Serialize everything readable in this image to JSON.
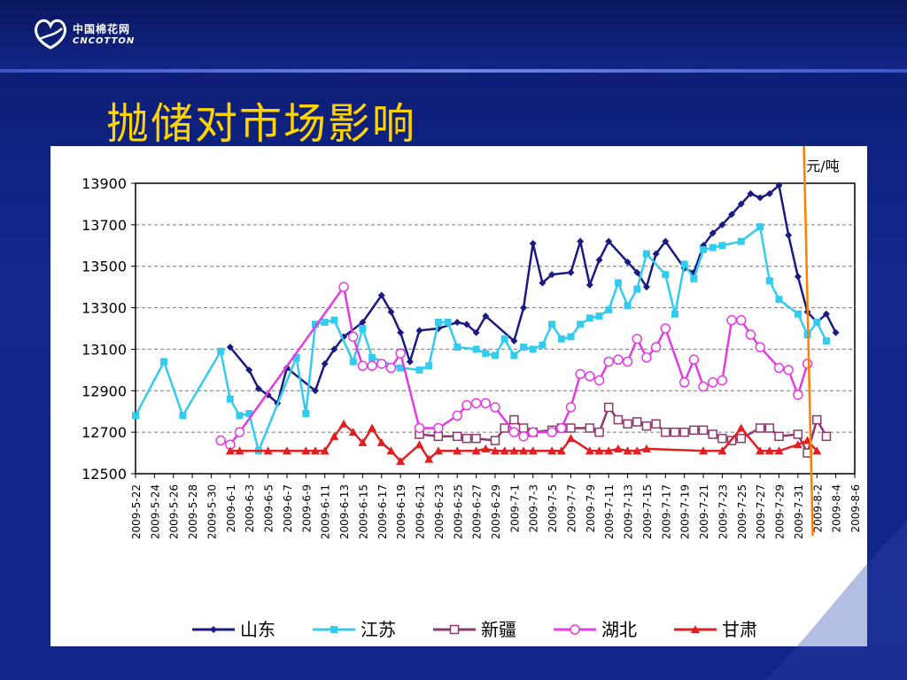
{
  "header": {
    "logo_cn": "中国棉花网",
    "logo_en": "CNCOTTON"
  },
  "title": "抛储对市场影响",
  "colors": {
    "background": "#0d1f80",
    "title": "#ffd400",
    "marker_line": "#ff8000"
  },
  "chart_data": {
    "type": "line",
    "unit_label": "元/吨",
    "ylim": [
      12500,
      13900
    ],
    "yticks": [
      12500,
      12700,
      12900,
      13100,
      13300,
      13500,
      13700,
      13900
    ],
    "grid": true,
    "legend_position": "bottom",
    "x_tick_labels": [
      "2009-5-22",
      "2009-5-24",
      "2009-5-26",
      "2009-5-28",
      "2009-5-30",
      "2009-6-1",
      "2009-6-3",
      "2009-6-5",
      "2009-6-7",
      "2009-6-9",
      "2009-6-11",
      "2009-6-13",
      "2009-6-15",
      "2009-6-17",
      "2009-6-19",
      "2009-6-21",
      "2009-6-23",
      "2009-6-25",
      "2009-6-27",
      "2009-6-29",
      "2009-7-1",
      "2009-7-3",
      "2009-7-5",
      "2009-7-7",
      "2009-7-9",
      "2009-7-11",
      "2009-7-13",
      "2009-7-15",
      "2009-7-17",
      "2009-7-19",
      "2009-7-21",
      "2009-7-23",
      "2009-7-25",
      "2009-7-27",
      "2009-7-29",
      "2009-7-31",
      "2009-8-2",
      "2009-8-4",
      "2009-8-6"
    ],
    "marker_at_index": 35.5,
    "series": [
      {
        "name": "山东",
        "color": "#1a1a80",
        "marker": "diamond",
        "points": [
          [
            5,
            13110
          ],
          [
            6,
            13000
          ],
          [
            6.5,
            12910
          ],
          [
            7,
            12880
          ],
          [
            7.5,
            12840
          ],
          [
            8,
            13010
          ],
          [
            9.5,
            12900
          ],
          [
            10,
            13030
          ],
          [
            10.5,
            13100
          ],
          [
            11,
            13160
          ],
          [
            12,
            13230
          ],
          [
            13,
            13360
          ],
          [
            13.5,
            13280
          ],
          [
            14,
            13180
          ],
          [
            14.5,
            13040
          ],
          [
            15,
            13190
          ],
          [
            16,
            13200
          ],
          [
            17,
            13230
          ],
          [
            17.5,
            13220
          ],
          [
            18,
            13180
          ],
          [
            18.5,
            13260
          ],
          [
            20,
            13140
          ],
          [
            20.5,
            13300
          ],
          [
            21,
            13610
          ],
          [
            21.5,
            13420
          ],
          [
            22,
            13460
          ],
          [
            23,
            13470
          ],
          [
            23.5,
            13620
          ],
          [
            24,
            13410
          ],
          [
            24.5,
            13530
          ],
          [
            25,
            13620
          ],
          [
            26,
            13520
          ],
          [
            26.5,
            13470
          ],
          [
            27,
            13400
          ],
          [
            27.5,
            13560
          ],
          [
            28,
            13620
          ],
          [
            29,
            13490
          ],
          [
            29.5,
            13470
          ],
          [
            30,
            13600
          ],
          [
            30.5,
            13660
          ],
          [
            31,
            13700
          ],
          [
            31.5,
            13750
          ],
          [
            32,
            13800
          ],
          [
            32.5,
            13850
          ],
          [
            33,
            13830
          ],
          [
            33.5,
            13850
          ],
          [
            34,
            13890
          ],
          [
            34.5,
            13650
          ],
          [
            35,
            13450
          ],
          [
            35.5,
            13280
          ],
          [
            36,
            13230
          ],
          [
            36.5,
            13270
          ],
          [
            37,
            13180
          ]
        ]
      },
      {
        "name": "江苏",
        "color": "#33ccee",
        "marker": "square",
        "points": [
          [
            0,
            12780
          ],
          [
            1.5,
            13040
          ],
          [
            2.5,
            12780
          ],
          [
            4.5,
            13090
          ],
          [
            5,
            12860
          ],
          [
            5.5,
            12780
          ],
          [
            6,
            12790
          ],
          [
            6.5,
            12610
          ],
          [
            8.5,
            13060
          ],
          [
            9,
            12790
          ],
          [
            9.5,
            13220
          ],
          [
            10,
            13230
          ],
          [
            10.5,
            13240
          ],
          [
            11.5,
            13040
          ],
          [
            12,
            13200
          ],
          [
            12.5,
            13060
          ],
          [
            14,
            13010
          ],
          [
            15,
            13000
          ],
          [
            15.5,
            13020
          ],
          [
            16,
            13230
          ],
          [
            16.5,
            13230
          ],
          [
            17,
            13110
          ],
          [
            18,
            13100
          ],
          [
            18.5,
            13080
          ],
          [
            19,
            13070
          ],
          [
            19.5,
            13150
          ],
          [
            20,
            13070
          ],
          [
            20.5,
            13110
          ],
          [
            21,
            13100
          ],
          [
            21.5,
            13120
          ],
          [
            22,
            13220
          ],
          [
            22.5,
            13150
          ],
          [
            23,
            13160
          ],
          [
            23.5,
            13220
          ],
          [
            24,
            13250
          ],
          [
            24.5,
            13260
          ],
          [
            25,
            13290
          ],
          [
            25.5,
            13420
          ],
          [
            26,
            13310
          ],
          [
            26.5,
            13390
          ],
          [
            27,
            13560
          ],
          [
            28,
            13460
          ],
          [
            28.5,
            13270
          ],
          [
            29,
            13510
          ],
          [
            29.5,
            13440
          ],
          [
            30,
            13580
          ],
          [
            30.5,
            13590
          ],
          [
            31,
            13600
          ],
          [
            32,
            13620
          ],
          [
            33,
            13690
          ],
          [
            33.5,
            13430
          ],
          [
            34,
            13340
          ],
          [
            35,
            13270
          ],
          [
            35.5,
            13170
          ],
          [
            36,
            13230
          ],
          [
            36.5,
            13140
          ]
        ]
      },
      {
        "name": "新疆",
        "color": "#8b3a6b",
        "marker": "square-open",
        "points": [
          [
            15,
            12690
          ],
          [
            16,
            12680
          ],
          [
            17,
            12680
          ],
          [
            17.5,
            12670
          ],
          [
            18,
            12670
          ],
          [
            19,
            12660
          ],
          [
            19.5,
            12720
          ],
          [
            20,
            12760
          ],
          [
            20.5,
            12720
          ],
          [
            21,
            12700
          ],
          [
            22,
            12710
          ],
          [
            22.5,
            12720
          ],
          [
            23,
            12720
          ],
          [
            24,
            12720
          ],
          [
            24.5,
            12700
          ],
          [
            25,
            12820
          ],
          [
            25.5,
            12760
          ],
          [
            26,
            12740
          ],
          [
            26.5,
            12750
          ],
          [
            27,
            12730
          ],
          [
            27.5,
            12740
          ],
          [
            28,
            12700
          ],
          [
            28.5,
            12700
          ],
          [
            29,
            12700
          ],
          [
            29.5,
            12710
          ],
          [
            30,
            12710
          ],
          [
            30.5,
            12690
          ],
          [
            31,
            12670
          ],
          [
            31.5,
            12660
          ],
          [
            32,
            12670
          ],
          [
            33,
            12720
          ],
          [
            33.5,
            12720
          ],
          [
            34,
            12680
          ],
          [
            35,
            12690
          ],
          [
            35.5,
            12600
          ],
          [
            36,
            12760
          ],
          [
            36.5,
            12680
          ]
        ]
      },
      {
        "name": "湖北",
        "color": "#e03ee0",
        "marker": "circle-open",
        "points": [
          [
            4.5,
            12660
          ],
          [
            5,
            12640
          ],
          [
            5.5,
            12700
          ],
          [
            11,
            13400
          ],
          [
            11.5,
            13160
          ],
          [
            12,
            13020
          ],
          [
            12.5,
            13020
          ],
          [
            13,
            13030
          ],
          [
            13.5,
            13010
          ],
          [
            14,
            13080
          ],
          [
            15,
            12720
          ],
          [
            16,
            12720
          ],
          [
            17,
            12780
          ],
          [
            17.5,
            12830
          ],
          [
            18,
            12840
          ],
          [
            18.5,
            12840
          ],
          [
            19,
            12820
          ],
          [
            20,
            12700
          ],
          [
            20.5,
            12680
          ],
          [
            21,
            12700
          ],
          [
            22,
            12700
          ],
          [
            22.5,
            12720
          ],
          [
            23,
            12820
          ],
          [
            23.5,
            12980
          ],
          [
            24,
            12970
          ],
          [
            24.5,
            12950
          ],
          [
            25,
            13040
          ],
          [
            25.5,
            13050
          ],
          [
            26,
            13040
          ],
          [
            26.5,
            13150
          ],
          [
            27,
            13060
          ],
          [
            27.5,
            13110
          ],
          [
            28,
            13200
          ],
          [
            29,
            12940
          ],
          [
            29.5,
            13050
          ],
          [
            30,
            12920
          ],
          [
            30.5,
            12940
          ],
          [
            31,
            12950
          ],
          [
            31.5,
            13240
          ],
          [
            32,
            13240
          ],
          [
            32.5,
            13170
          ],
          [
            33,
            13110
          ],
          [
            34,
            13010
          ],
          [
            34.5,
            13000
          ],
          [
            35,
            12880
          ],
          [
            35.5,
            13030
          ]
        ]
      },
      {
        "name": "甘肃",
        "color": "#e02020",
        "marker": "triangle",
        "points": [
          [
            5,
            12610
          ],
          [
            5.5,
            12610
          ],
          [
            7,
            12610
          ],
          [
            8,
            12610
          ],
          [
            9,
            12610
          ],
          [
            9.5,
            12610
          ],
          [
            10,
            12610
          ],
          [
            10.5,
            12680
          ],
          [
            11,
            12740
          ],
          [
            11.5,
            12700
          ],
          [
            12,
            12650
          ],
          [
            12.5,
            12720
          ],
          [
            13,
            12650
          ],
          [
            13.5,
            12610
          ],
          [
            14,
            12560
          ],
          [
            15,
            12640
          ],
          [
            15.5,
            12570
          ],
          [
            16,
            12610
          ],
          [
            17,
            12610
          ],
          [
            18,
            12610
          ],
          [
            18.5,
            12620
          ],
          [
            19,
            12610
          ],
          [
            19.5,
            12610
          ],
          [
            20,
            12610
          ],
          [
            20.5,
            12610
          ],
          [
            21,
            12610
          ],
          [
            22,
            12610
          ],
          [
            22.5,
            12610
          ],
          [
            23,
            12670
          ],
          [
            24,
            12610
          ],
          [
            24.5,
            12610
          ],
          [
            25,
            12610
          ],
          [
            25.5,
            12620
          ],
          [
            26,
            12610
          ],
          [
            26.5,
            12610
          ],
          [
            27,
            12620
          ],
          [
            30,
            12610
          ],
          [
            31,
            12610
          ],
          [
            32,
            12720
          ],
          [
            33,
            12610
          ],
          [
            33.5,
            12610
          ],
          [
            34,
            12610
          ],
          [
            35,
            12640
          ],
          [
            35.5,
            12660
          ],
          [
            36,
            12610
          ]
        ]
      }
    ]
  }
}
